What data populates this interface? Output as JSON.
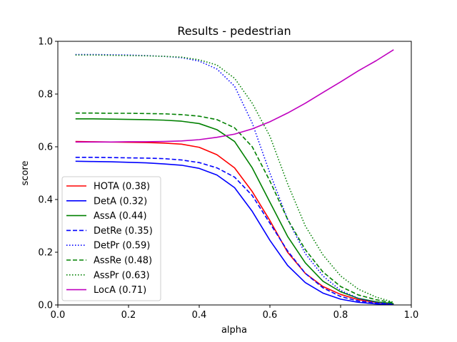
{
  "chart_data": {
    "type": "line",
    "title": "Results - pedestrian",
    "xlabel": "alpha",
    "ylabel": "score",
    "xlim": [
      0.0,
      1.0
    ],
    "ylim": [
      0.0,
      1.0
    ],
    "xticks": [
      0.0,
      0.2,
      0.4,
      0.6,
      0.8,
      1.0
    ],
    "yticks": [
      0.0,
      0.2,
      0.4,
      0.6,
      0.8,
      1.0
    ],
    "xtick_labels": [
      "0.0",
      "0.2",
      "0.4",
      "0.6",
      "0.8",
      "1.0"
    ],
    "ytick_labels": [
      "0.0",
      "0.2",
      "0.4",
      "0.6",
      "0.8",
      "1.0"
    ],
    "grid": false,
    "legend_position": "lower-left",
    "x": [
      0.05,
      0.1,
      0.15,
      0.2,
      0.25,
      0.3,
      0.35,
      0.4,
      0.45,
      0.5,
      0.55,
      0.6,
      0.65,
      0.7,
      0.75,
      0.8,
      0.85,
      0.9,
      0.95
    ],
    "series": [
      {
        "name": "HOTA (0.38)",
        "color": "#ff0000",
        "dash": "solid",
        "values": [
          0.62,
          0.619,
          0.618,
          0.617,
          0.616,
          0.614,
          0.61,
          0.598,
          0.57,
          0.52,
          0.43,
          0.32,
          0.2,
          0.12,
          0.07,
          0.04,
          0.02,
          0.01,
          0.004
        ]
      },
      {
        "name": "DetA (0.32)",
        "color": "#0000ff",
        "dash": "solid",
        "values": [
          0.545,
          0.544,
          0.543,
          0.541,
          0.539,
          0.535,
          0.53,
          0.518,
          0.493,
          0.445,
          0.355,
          0.245,
          0.15,
          0.085,
          0.045,
          0.022,
          0.01,
          0.004,
          0.001
        ]
      },
      {
        "name": "AssA (0.44)",
        "color": "#008000",
        "dash": "solid",
        "values": [
          0.706,
          0.706,
          0.705,
          0.704,
          0.703,
          0.701,
          0.697,
          0.688,
          0.665,
          0.62,
          0.52,
          0.39,
          0.26,
          0.16,
          0.09,
          0.05,
          0.025,
          0.012,
          0.005
        ]
      },
      {
        "name": "DetRe (0.35)",
        "color": "#0000ff",
        "dash": "dashed",
        "values": [
          0.56,
          0.56,
          0.559,
          0.558,
          0.557,
          0.555,
          0.55,
          0.54,
          0.52,
          0.485,
          0.415,
          0.31,
          0.205,
          0.12,
          0.065,
          0.032,
          0.015,
          0.006,
          0.002
        ]
      },
      {
        "name": "DetPr (0.59)",
        "color": "#0000ff",
        "dash": "dotted",
        "values": [
          0.95,
          0.95,
          0.949,
          0.948,
          0.946,
          0.943,
          0.938,
          0.925,
          0.895,
          0.83,
          0.69,
          0.5,
          0.325,
          0.195,
          0.11,
          0.055,
          0.025,
          0.01,
          0.003
        ]
      },
      {
        "name": "AssRe (0.48)",
        "color": "#008000",
        "dash": "dashed",
        "values": [
          0.728,
          0.728,
          0.727,
          0.727,
          0.726,
          0.725,
          0.722,
          0.716,
          0.703,
          0.672,
          0.6,
          0.47,
          0.325,
          0.21,
          0.125,
          0.07,
          0.038,
          0.02,
          0.008
        ]
      },
      {
        "name": "AssPr (0.63)",
        "color": "#008000",
        "dash": "dotted",
        "values": [
          0.948,
          0.948,
          0.947,
          0.946,
          0.945,
          0.943,
          0.94,
          0.93,
          0.91,
          0.86,
          0.765,
          0.64,
          0.46,
          0.3,
          0.19,
          0.11,
          0.06,
          0.03,
          0.01
        ]
      },
      {
        "name": "LocA (0.71)",
        "color": "#bf00bf",
        "dash": "solid",
        "values": [
          0.618,
          0.618,
          0.618,
          0.619,
          0.619,
          0.62,
          0.622,
          0.627,
          0.636,
          0.648,
          0.668,
          0.695,
          0.728,
          0.765,
          0.806,
          0.846,
          0.888,
          0.926,
          0.968
        ]
      }
    ]
  }
}
